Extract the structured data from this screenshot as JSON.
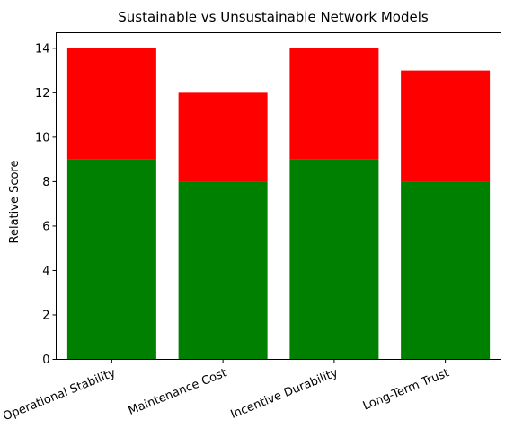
{
  "chart_data": {
    "type": "bar",
    "stacked": true,
    "title": "Sustainable vs Unsustainable Network Models",
    "xlabel": "",
    "ylabel": "Relative Score",
    "categories": [
      "Operational Stability",
      "Maintenance Cost",
      "Incentive Durability",
      "Long-Term Trust"
    ],
    "series": [
      {
        "values": [
          9,
          8,
          9,
          8
        ],
        "color": "#008000"
      },
      {
        "values": [
          5,
          4,
          5,
          5
        ],
        "color": "#ff0000"
      }
    ],
    "ylim": [
      0,
      14.7
    ],
    "yticks": [
      0,
      2,
      4,
      6,
      8,
      10,
      12,
      14
    ],
    "xtick_rotation_deg": -22,
    "grid": false,
    "legend": "none"
  }
}
